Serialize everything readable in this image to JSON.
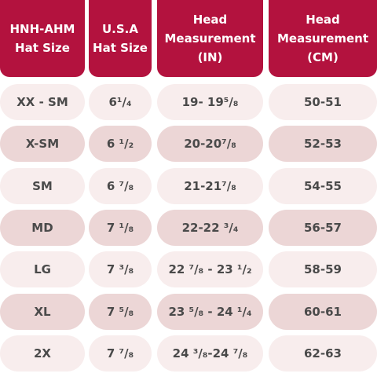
{
  "table": {
    "header": [
      [
        "HNH-AHM",
        "Hat Size"
      ],
      [
        "U.S.A",
        "Hat Size"
      ],
      [
        "Head",
        "Measurement",
        "(IN)"
      ],
      [
        "Head",
        "Measurement",
        "(CM)"
      ]
    ],
    "rows": [
      [
        "XX - SM",
        "6¹/₄",
        "19- 19⁵/₈",
        "50-51"
      ],
      [
        "X-SM",
        "6 ¹/₂",
        "20-20⁷/₈",
        "52-53"
      ],
      [
        "SM",
        "6 ⁷/₈",
        "21-21⁷/₈",
        "54-55"
      ],
      [
        "MD",
        "7 ¹/₈",
        "22-22 ³/₄",
        "56-57"
      ],
      [
        "LG",
        "7 ³/₈",
        "22 ⁷/₈ - 23 ¹/₂",
        "58-59"
      ],
      [
        "XL",
        "7 ⁵/₈",
        "23 ⁵/₈ - 24 ¹/₄",
        "60-61"
      ],
      [
        "2X",
        "7 ⁷/₈",
        "24 ³/₈-24 ⁷/₈",
        "62-63"
      ]
    ]
  }
}
